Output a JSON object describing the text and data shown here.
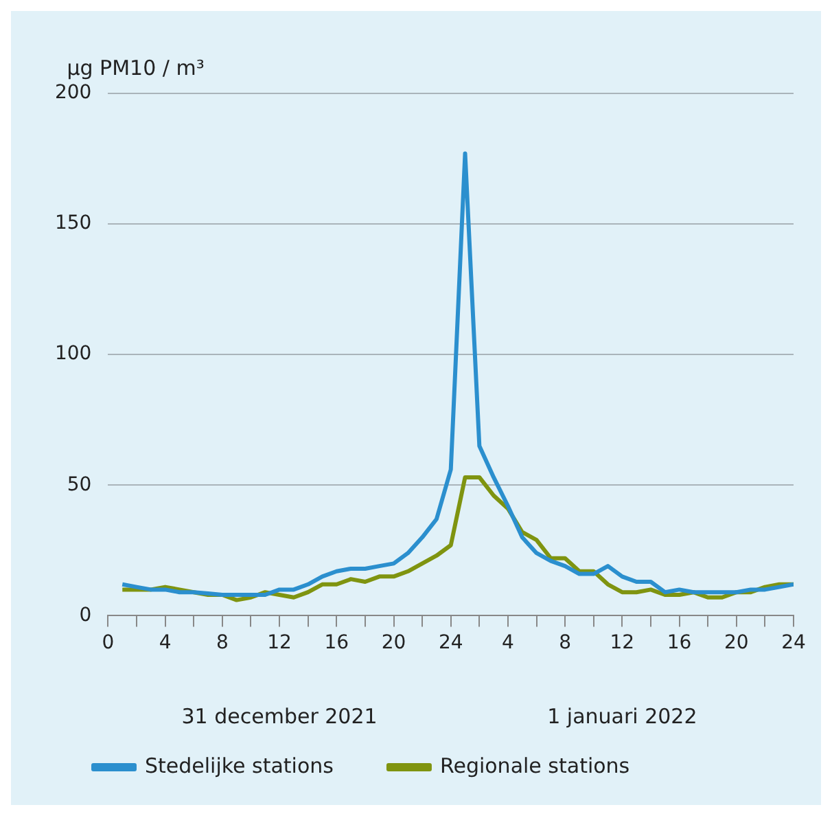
{
  "chart_data": {
    "type": "line",
    "ylabel": "µg PM10 / m³",
    "x": [
      "2021-12-31T01:00",
      "2021-12-31T02:00",
      "2021-12-31T03:00",
      "2021-12-31T04:00",
      "2021-12-31T05:00",
      "2021-12-31T06:00",
      "2021-12-31T07:00",
      "2021-12-31T08:00",
      "2021-12-31T09:00",
      "2021-12-31T10:00",
      "2021-12-31T11:00",
      "2021-12-31T12:00",
      "2021-12-31T13:00",
      "2021-12-31T14:00",
      "2021-12-31T15:00",
      "2021-12-31T16:00",
      "2021-12-31T17:00",
      "2021-12-31T18:00",
      "2021-12-31T19:00",
      "2021-12-31T20:00",
      "2021-12-31T21:00",
      "2021-12-31T22:00",
      "2021-12-31T23:00",
      "2022-01-01T00:00",
      "2022-01-01T01:00",
      "2022-01-01T02:00",
      "2022-01-01T03:00",
      "2022-01-01T04:00",
      "2022-01-01T05:00",
      "2022-01-01T06:00",
      "2022-01-01T07:00",
      "2022-01-01T08:00",
      "2022-01-01T09:00",
      "2022-01-01T10:00",
      "2022-01-01T11:00",
      "2022-01-01T12:00",
      "2022-01-01T13:00",
      "2022-01-01T14:00",
      "2022-01-01T15:00",
      "2022-01-01T16:00",
      "2022-01-01T17:00",
      "2022-01-01T18:00",
      "2022-01-01T19:00",
      "2022-01-01T20:00",
      "2022-01-01T21:00",
      "2022-01-01T22:00",
      "2022-01-01T23:00",
      "2022-01-02T00:00"
    ],
    "series": [
      {
        "name": "Stedelijke stations",
        "color": "#2b8fce",
        "values": [
          12,
          11,
          10,
          10,
          9,
          9,
          8.5,
          8,
          8,
          8,
          8,
          10,
          10,
          12,
          15,
          17,
          18,
          18,
          19,
          20,
          24,
          30,
          37,
          56,
          177,
          65,
          53,
          42,
          30,
          24,
          21,
          19,
          16,
          16,
          19,
          15,
          13,
          13,
          9,
          10,
          9,
          9,
          9,
          9,
          10,
          10,
          11,
          12
        ]
      },
      {
        "name": "Regionale stations",
        "color": "#7f9410",
        "values": [
          10,
          10,
          10,
          11,
          10,
          9,
          8,
          8,
          6,
          7,
          9,
          8,
          7,
          9,
          12,
          12,
          14,
          13,
          15,
          15,
          17,
          20,
          23,
          27,
          53,
          53,
          46,
          41,
          32,
          29,
          22,
          22,
          17,
          17,
          12,
          9,
          9,
          10,
          8,
          8,
          9,
          7,
          7,
          9,
          9,
          11,
          12,
          12
        ]
      }
    ],
    "xlim": [
      "2021-12-31T00:00",
      "2022-01-02T00:00"
    ],
    "xticks": [
      {
        "value": "2021-12-31T00:00",
        "label": "0"
      },
      {
        "value": "2021-12-31T02:00",
        "label": null
      },
      {
        "value": "2021-12-31T04:00",
        "label": "4"
      },
      {
        "value": "2021-12-31T06:00",
        "label": null
      },
      {
        "value": "2021-12-31T08:00",
        "label": "8"
      },
      {
        "value": "2021-12-31T10:00",
        "label": null
      },
      {
        "value": "2021-12-31T12:00",
        "label": "12"
      },
      {
        "value": "2021-12-31T14:00",
        "label": null
      },
      {
        "value": "2021-12-31T16:00",
        "label": "16"
      },
      {
        "value": "2021-12-31T18:00",
        "label": null
      },
      {
        "value": "2021-12-31T20:00",
        "label": "20"
      },
      {
        "value": "2021-12-31T22:00",
        "label": null
      },
      {
        "value": "2022-01-01T00:00",
        "label": "24"
      },
      {
        "value": "2022-01-01T02:00",
        "label": null
      },
      {
        "value": "2022-01-01T04:00",
        "label": "4"
      },
      {
        "value": "2022-01-01T06:00",
        "label": null
      },
      {
        "value": "2022-01-01T08:00",
        "label": "8"
      },
      {
        "value": "2022-01-01T10:00",
        "label": null
      },
      {
        "value": "2022-01-01T12:00",
        "label": "12"
      },
      {
        "value": "2022-01-01T14:00",
        "label": null
      },
      {
        "value": "2022-01-01T16:00",
        "label": "16"
      },
      {
        "value": "2022-01-01T18:00",
        "label": null
      },
      {
        "value": "2022-01-01T20:00",
        "label": "20"
      },
      {
        "value": "2022-01-01T22:00",
        "label": null
      },
      {
        "value": "2022-01-02T00:00",
        "label": "24"
      }
    ],
    "ylim": [
      0,
      200
    ],
    "yticks": [
      0,
      50,
      100,
      150,
      200
    ],
    "annotations": [
      "31 december 2021",
      "1 januari 2022"
    ],
    "grid": "y",
    "legend": "bottom",
    "marker": "none",
    "line_style": "solid"
  }
}
